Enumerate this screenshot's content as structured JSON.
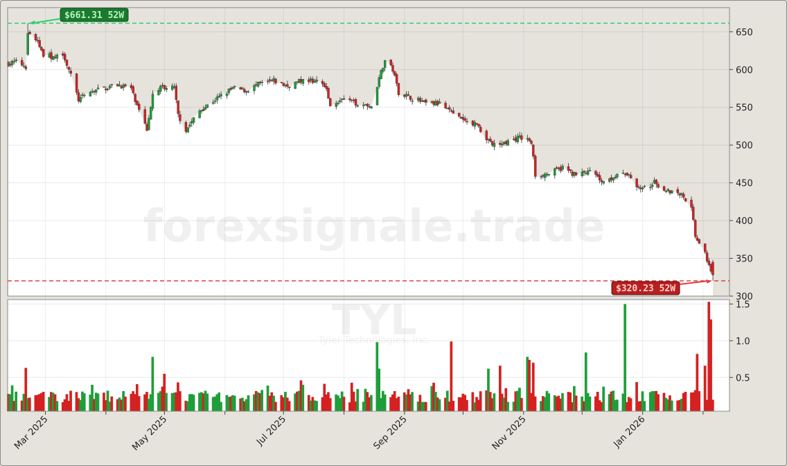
{
  "watermark": {
    "site": "forexsignale.trade",
    "ticker": "TYL",
    "company": "Tyler Technologies, Inc."
  },
  "colors": {
    "up": "#1e9e3a",
    "down": "#d42121",
    "high_line": "#2ecc71",
    "low_line": "#e04040",
    "high_label_bg": "#1a7a2e",
    "low_label_bg": "#b81f1f"
  },
  "chart_data": [
    {
      "type": "candlestick",
      "title": "",
      "x_tick_labels": [
        "Mar 2025",
        "May 2025",
        "Jul 2025",
        "Sep 2025",
        "Nov 2025",
        "Jan 2026"
      ],
      "y_ticks": [
        300,
        350,
        400,
        450,
        500,
        550,
        600,
        650
      ],
      "ylim": [
        300,
        682
      ],
      "grid": true,
      "annotations": [
        {
          "label": "$661.31 52W",
          "value": 661.31,
          "kind": "52-week high"
        },
        {
          "label": "$320.23 52W",
          "value": 320.23,
          "kind": "52-week low"
        }
      ],
      "date_start": "2025-02-10",
      "date_end": "2026-02-06",
      "close_anchors": [
        [
          "2025-02-10",
          608
        ],
        [
          "2025-02-14",
          610
        ],
        [
          "2025-02-19",
          604
        ],
        [
          "2025-02-20",
          648
        ],
        [
          "2025-02-24",
          640
        ],
        [
          "2025-02-28",
          620
        ],
        [
          "2025-03-06",
          615
        ],
        [
          "2025-03-10",
          622
        ],
        [
          "2025-03-13",
          600
        ],
        [
          "2025-03-18",
          560
        ],
        [
          "2025-03-24",
          570
        ],
        [
          "2025-03-31",
          575
        ],
        [
          "2025-04-07",
          580
        ],
        [
          "2025-04-14",
          575
        ],
        [
          "2025-04-17",
          550
        ],
        [
          "2025-04-22",
          520
        ],
        [
          "2025-04-25",
          570
        ],
        [
          "2025-04-30",
          578
        ],
        [
          "2025-05-06",
          575
        ],
        [
          "2025-05-08",
          540
        ],
        [
          "2025-05-12",
          520
        ],
        [
          "2025-05-19",
          545
        ],
        [
          "2025-05-27",
          560
        ],
        [
          "2025-06-05",
          575
        ],
        [
          "2025-06-12",
          572
        ],
        [
          "2025-06-18",
          580
        ],
        [
          "2025-06-26",
          585
        ],
        [
          "2025-07-03",
          578
        ],
        [
          "2025-07-10",
          585
        ],
        [
          "2025-07-17",
          585
        ],
        [
          "2025-07-22",
          580
        ],
        [
          "2025-07-25",
          555
        ],
        [
          "2025-08-01",
          560
        ],
        [
          "2025-08-08",
          555
        ],
        [
          "2025-08-15",
          552
        ],
        [
          "2025-08-18",
          580
        ],
        [
          "2025-08-22",
          612
        ],
        [
          "2025-08-26",
          600
        ],
        [
          "2025-08-29",
          570
        ],
        [
          "2025-09-05",
          562
        ],
        [
          "2025-09-12",
          555
        ],
        [
          "2025-09-19",
          555
        ],
        [
          "2025-09-26",
          540
        ],
        [
          "2025-10-03",
          530
        ],
        [
          "2025-10-08",
          528
        ],
        [
          "2025-10-14",
          505
        ],
        [
          "2025-10-20",
          500
        ],
        [
          "2025-10-24",
          505
        ],
        [
          "2025-10-30",
          510
        ],
        [
          "2025-11-05",
          505
        ],
        [
          "2025-11-07",
          460
        ],
        [
          "2025-11-14",
          462
        ],
        [
          "2025-11-21",
          470
        ],
        [
          "2025-11-28",
          460
        ],
        [
          "2025-12-05",
          465
        ],
        [
          "2025-12-12",
          452
        ],
        [
          "2025-12-18",
          460
        ],
        [
          "2025-12-25",
          460
        ],
        [
          "2025-12-31",
          440
        ],
        [
          "2026-01-07",
          450
        ],
        [
          "2026-01-14",
          440
        ],
        [
          "2026-01-21",
          435
        ],
        [
          "2026-01-26",
          420
        ],
        [
          "2026-01-28",
          380
        ],
        [
          "2026-02-02",
          355
        ],
        [
          "2026-02-06",
          330
        ]
      ]
    },
    {
      "type": "bar",
      "title": "",
      "y_ticks": [
        0.5,
        1.0,
        1.5
      ],
      "ylim": [
        0.04,
        1.56
      ],
      "grid": true,
      "volume_spikes": [
        [
          "2025-02-19",
          0.63
        ],
        [
          "2025-04-25",
          0.78
        ],
        [
          "2025-05-01",
          0.55
        ],
        [
          "2025-07-10",
          0.46
        ],
        [
          "2025-08-18",
          0.98
        ],
        [
          "2025-08-19",
          0.62
        ],
        [
          "2025-09-25",
          0.99
        ],
        [
          "2025-10-14",
          0.62
        ],
        [
          "2025-10-20",
          0.66
        ],
        [
          "2025-11-03",
          0.78
        ],
        [
          "2025-11-04",
          0.74
        ],
        [
          "2025-11-06",
          0.7
        ],
        [
          "2025-12-03",
          0.84
        ],
        [
          "2025-12-23",
          1.5
        ],
        [
          "2026-01-29",
          0.82
        ],
        [
          "2026-02-02",
          0.66
        ],
        [
          "2026-02-04",
          1.53
        ],
        [
          "2026-02-05",
          1.29
        ]
      ]
    }
  ]
}
